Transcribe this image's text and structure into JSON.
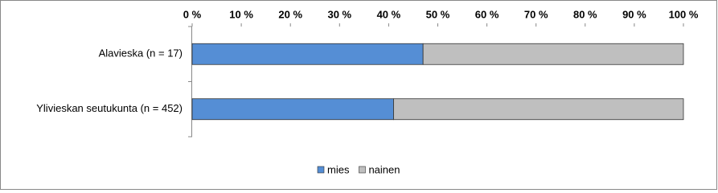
{
  "chart_data": {
    "type": "stacked-barh",
    "categories": [
      "Alavieska (n = 17)",
      "Ylivieskan seutukunta (n = 452)"
    ],
    "series": [
      {
        "name": "mies",
        "color": "#558ed5",
        "values": [
          47,
          41
        ]
      },
      {
        "name": "nainen",
        "color": "#bfbfbf",
        "values": [
          53,
          59
        ]
      }
    ],
    "xlim": [
      0,
      100
    ],
    "xticks": [
      {
        "value": 0,
        "label": "0 %"
      },
      {
        "value": 10,
        "label": "10 %"
      },
      {
        "value": 20,
        "label": "20 %"
      },
      {
        "value": 30,
        "label": "30 %"
      },
      {
        "value": 40,
        "label": "40 %"
      },
      {
        "value": 50,
        "label": "50 %"
      },
      {
        "value": 60,
        "label": "60 %"
      },
      {
        "value": 70,
        "label": "70 %"
      },
      {
        "value": 80,
        "label": "80 %"
      },
      {
        "value": 90,
        "label": "90 %"
      },
      {
        "value": 100,
        "label": "100 %"
      }
    ],
    "legend": "bottom"
  }
}
